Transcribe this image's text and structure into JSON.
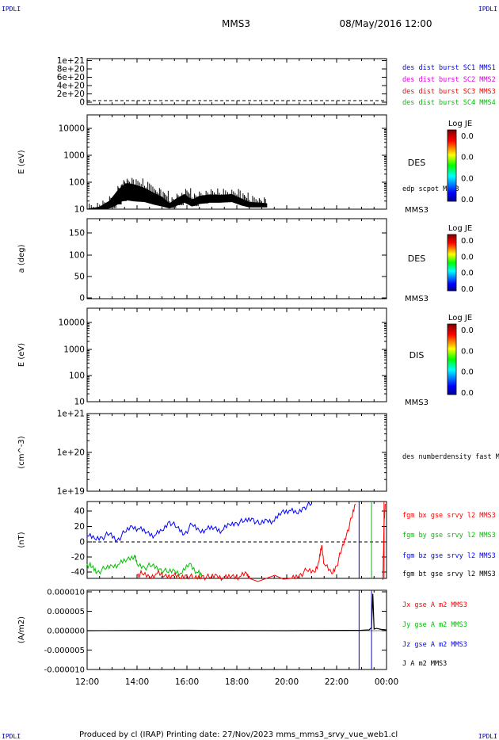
{
  "corner_marks": {
    "top_left": "IPDLI",
    "top_right": "IPDLI",
    "bottom_left": "IPDLI",
    "bottom_right": "IPDLI"
  },
  "header": {
    "spacecraft": "MMS3",
    "datetime": "08/May/2016 12:00"
  },
  "footer": {
    "text": "Produced by cl (IRAP)   Printing date: 27/Nov/2023   mms_mms3_srvy_vue_web1.cl"
  },
  "chart_data": [
    {
      "type": "line",
      "panel": "des dist burst",
      "yticks": [
        "1e+21",
        "8e+20",
        "6e+20",
        "4e+20",
        "2e+20",
        "0"
      ],
      "ylim": [
        0,
        1.1e+21
      ],
      "reference_line": 0,
      "legend": [
        {
          "label": "des dist burst SC1 MMS1",
          "color": "#0000ff"
        },
        {
          "label": "des dist burst SC2 MMS2",
          "color": "#e000e0"
        },
        {
          "label": "des dist burst SC3 MMS3",
          "color": "#ff0000"
        },
        {
          "label": "des dist burst SC4 MMS4",
          "color": "#00c000"
        }
      ]
    },
    {
      "type": "line",
      "panel": "DES energy",
      "ylabel": "E (eV)",
      "yticks": [
        "10000",
        "1000",
        "100",
        "10"
      ],
      "ylim": [
        10,
        14000
      ],
      "log_scale": true,
      "instrument_label": "DES",
      "spacecraft_label": "MMS3",
      "overlay_label": "edp scpot MMS3",
      "colorbar": {
        "title": "Log JE",
        "ticks": [
          "0.0",
          "0.0",
          "0.0",
          "0.0"
        ]
      },
      "series": [
        {
          "name": "edp scpot MMS3",
          "color": "#000000",
          "x": [
            12.0,
            12.5,
            12.9,
            13.2,
            13.4,
            13.6,
            13.9,
            14.3,
            14.7,
            15.0,
            15.3,
            15.6,
            15.9,
            16.2,
            16.5,
            16.9,
            17.3,
            17.8,
            18.2,
            18.5,
            18.9,
            19.2
          ],
          "ymin": [
            10,
            10,
            11,
            15,
            20,
            22,
            20,
            19,
            15,
            13,
            11,
            14,
            18,
            13,
            16,
            18,
            18,
            19,
            14,
            12,
            12,
            12
          ],
          "ymax": [
            10,
            12,
            20,
            45,
            70,
            90,
            80,
            60,
            38,
            28,
            16,
            25,
            35,
            22,
            30,
            34,
            33,
            35,
            24,
            18,
            17,
            16
          ]
        }
      ]
    },
    {
      "type": "heatmap",
      "panel": "DES pitch angle",
      "ylabel": "a (deg)",
      "yticks": [
        "150",
        "100",
        "50",
        "0"
      ],
      "ylim": [
        0,
        180
      ],
      "instrument_label": "DES",
      "spacecraft_label": "MMS3",
      "colorbar": {
        "title": "Log JE",
        "ticks": [
          "0.0",
          "0.0",
          "0.0",
          "0.0"
        ]
      }
    },
    {
      "type": "heatmap",
      "panel": "DIS energy",
      "ylabel": "E (eV)",
      "yticks": [
        "10000",
        "1000",
        "100",
        "10"
      ],
      "ylim": [
        10,
        14000
      ],
      "log_scale": true,
      "instrument_label": "DIS",
      "spacecraft_label": "MMS3",
      "colorbar": {
        "title": "Log JE",
        "ticks": [
          "0.0",
          "0.0",
          "0.0",
          "0.0"
        ]
      }
    },
    {
      "type": "line",
      "panel": "number density",
      "ylabel": "(cm^-3)",
      "yticks": [
        "1e+21",
        "1e+20",
        "1e+19"
      ],
      "ylim": [
        1e+19,
        1e+21
      ],
      "log_scale": true,
      "legend": [
        {
          "label": "des numberdensity fast M",
          "color": "#000000"
        }
      ]
    },
    {
      "type": "line",
      "panel": "fgm",
      "ylabel": "(nT)",
      "yticks": [
        "40",
        "20",
        "0",
        "-20",
        "-40"
      ],
      "ylim": [
        -48,
        48
      ],
      "reference_line": 0,
      "legend": [
        {
          "label": "fgm bx gse srvy l2 MMS3",
          "color": "#ff0000"
        },
        {
          "label": "fgm by gse srvy l2 MMS3",
          "color": "#00c000"
        },
        {
          "label": "fgm bz gse srvy l2 MMS3",
          "color": "#0000ff"
        },
        {
          "label": "fgm bt gse srvy l2 MMS3",
          "color": "#000000"
        }
      ],
      "series": [
        {
          "name": "fgm bz gse srvy l2 MMS3",
          "color": "#0000ff",
          "x": [
            12.0,
            12.3,
            12.6,
            12.9,
            13.2,
            13.5,
            13.8,
            14.1,
            14.4,
            14.7,
            15.0,
            15.3,
            15.6,
            15.9,
            16.2,
            16.5,
            16.8,
            17.1,
            17.4,
            17.7,
            18.0,
            18.3,
            18.6,
            18.9,
            19.2,
            19.5,
            19.8,
            20.1,
            20.4,
            20.7,
            21.0
          ],
          "y": [
            8,
            4,
            6,
            10,
            2,
            12,
            20,
            16,
            12,
            8,
            14,
            26,
            18,
            10,
            22,
            14,
            16,
            18,
            14,
            22,
            24,
            26,
            30,
            22,
            28,
            26,
            38,
            40,
            36,
            44,
            48
          ]
        },
        {
          "name": "fgm by gse srvy l2 MMS3",
          "color": "#00c000",
          "x": [
            12.0,
            12.2,
            12.4,
            12.7,
            13.0,
            13.3,
            13.6,
            13.9,
            14.0,
            14.3,
            14.6,
            14.9,
            15.2,
            15.5,
            15.8,
            16.1,
            16.4,
            16.6
          ],
          "y": [
            -28,
            -32,
            -38,
            -34,
            -30,
            -28,
            -22,
            -17,
            -28,
            -32,
            -30,
            -34,
            -38,
            -36,
            -40,
            -27,
            -38,
            -43
          ]
        },
        {
          "name": "fgm bx gse srvy l2 MMS3",
          "color": "#ff0000",
          "x": [
            14.0,
            14.2,
            14.5,
            14.8,
            15.1,
            15.4,
            15.7,
            16.0,
            16.3,
            16.6,
            16.9,
            17.2,
            17.5,
            17.8,
            18.1,
            18.4,
            18.5,
            20.2,
            20.5,
            20.8,
            21.1,
            21.3,
            21.4,
            21.5,
            21.8,
            22.0,
            22.2,
            22.4,
            22.6,
            22.75
          ],
          "y": [
            -42,
            -40,
            -44,
            -40,
            -43,
            -42,
            -45,
            -42,
            -46,
            -43,
            -45,
            -42,
            -46,
            -43,
            -44,
            -40,
            -46,
            -46,
            -42,
            -36,
            -38,
            -24,
            -4,
            -28,
            -40,
            -30,
            -10,
            10,
            30,
            48
          ]
        },
        {
          "name": "fgm bx gse srvy l2 MMS3 (end)",
          "color": "#ff0000",
          "x": [
            23.85,
            23.9,
            23.95
          ],
          "y": [
            -48,
            20,
            48
          ]
        }
      ],
      "markers": [
        {
          "x": 22.9,
          "color": "#0000ff"
        },
        {
          "x": 23.4,
          "color": "#00c000"
        },
        {
          "x": 23.9,
          "color": "#ff0000"
        }
      ]
    },
    {
      "type": "line",
      "panel": "current density",
      "ylabel": "(A/m2)",
      "xlabel": "",
      "yticks": [
        "0.000010",
        "0.000005",
        "0.000000",
        "-0.000005",
        "-0.000010"
      ],
      "ylim": [
        -1e-05,
        1e-05
      ],
      "xticks": [
        "12:00",
        "14:00",
        "16:00",
        "18:00",
        "20:00",
        "22:00",
        "00:00"
      ],
      "xlim": [
        12,
        24
      ],
      "legend": [
        {
          "label": "Jx gse A m2 MMS3",
          "color": "#ff0000"
        },
        {
          "label": "Jy gse A m2 MMS3",
          "color": "#00c000"
        },
        {
          "label": "Jz gse A m2 MMS3",
          "color": "#0000ff"
        },
        {
          "label": "J A m2 MMS3",
          "color": "#000000"
        }
      ],
      "series": [
        {
          "name": "J A m2 MMS3",
          "color": "#000000",
          "x": [
            12.0,
            16.0,
            20.0,
            23.0,
            23.3,
            23.4,
            23.45,
            23.5,
            23.6,
            23.8,
            24.0
          ],
          "y": [
            0,
            1e-07,
            0,
            1e-07,
            2e-07,
            8e-07,
            9.5e-06,
            4e-07,
            6e-07,
            3e-07,
            2e-07
          ]
        }
      ],
      "markers": [
        {
          "x": 22.9,
          "color": "#0000ff"
        },
        {
          "x": 23.4,
          "color": "#0000ff"
        }
      ]
    }
  ]
}
